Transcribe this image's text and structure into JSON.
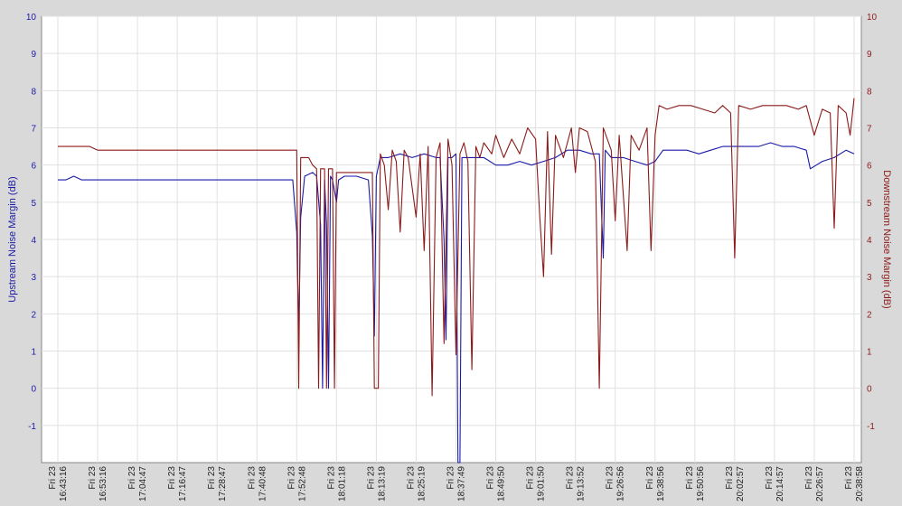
{
  "chart_data": {
    "type": "line",
    "left_axis": {
      "label": "Upstream Noise Margin (dB)",
      "color": "#1a1aa8",
      "range": [
        -2,
        10
      ],
      "ticks": [
        -1,
        0,
        1,
        2,
        3,
        4,
        5,
        6,
        7,
        8,
        9,
        10
      ]
    },
    "right_axis": {
      "label": "Downstream Noise Margin (dB)",
      "color": "#8b1a1a",
      "range": [
        -2,
        10
      ],
      "ticks": [
        -1,
        0,
        1,
        2,
        3,
        4,
        5,
        6,
        7,
        8,
        9,
        10
      ]
    },
    "x_tick_labels": [
      [
        "Fri 23",
        "16:43:16"
      ],
      [
        "Fri 23",
        "16:53:16"
      ],
      [
        "Fri 23",
        "17:04:47"
      ],
      [
        "Fri 23",
        "17:16:47"
      ],
      [
        "Fri 23",
        "17:28:47"
      ],
      [
        "Fri 23",
        "17:40:48"
      ],
      [
        "Fri 23",
        "17:52:48"
      ],
      [
        "Fri 23",
        "18:01:18"
      ],
      [
        "Fri 23",
        "18:13:19"
      ],
      [
        "Fri 23",
        "18:25:19"
      ],
      [
        "Fri 23",
        "18:37:49"
      ],
      [
        "Fri 23",
        "18:49:50"
      ],
      [
        "Fri 23",
        "19:01:50"
      ],
      [
        "Fri 23",
        "19:13:52"
      ],
      [
        "Fri 23",
        "19:26:56"
      ],
      [
        "Fri 23",
        "19:38:56"
      ],
      [
        "Fri 23",
        "19:50:56"
      ],
      [
        "Fri 23",
        "20:02:57"
      ],
      [
        "Fri 23",
        "20:14:57"
      ],
      [
        "Fri 23",
        "20:26:57"
      ],
      [
        "Fri 23",
        "20:38:58"
      ]
    ],
    "x_range": [
      0,
      20
    ],
    "grid": true,
    "series": [
      {
        "axis": "left",
        "color": "#1a1aa8",
        "points": [
          [
            0,
            5.6
          ],
          [
            0.2,
            5.6
          ],
          [
            0.4,
            5.7
          ],
          [
            0.6,
            5.6
          ],
          [
            1.0,
            5.6
          ],
          [
            1.4,
            5.6
          ],
          [
            1.8,
            5.6
          ],
          [
            2.2,
            5.6
          ],
          [
            2.6,
            5.6
          ],
          [
            3.0,
            5.6
          ],
          [
            3.4,
            5.6
          ],
          [
            3.8,
            5.6
          ],
          [
            4.2,
            5.6
          ],
          [
            4.6,
            5.6
          ],
          [
            5.0,
            5.6
          ],
          [
            5.5,
            5.6
          ],
          [
            5.9,
            5.6
          ],
          [
            6.0,
            4.2
          ],
          [
            6.05,
            1.5
          ],
          [
            6.1,
            4.6
          ],
          [
            6.2,
            5.7
          ],
          [
            6.4,
            5.8
          ],
          [
            6.5,
            5.7
          ],
          [
            6.6,
            4.4
          ],
          [
            6.65,
            0
          ],
          [
            6.7,
            5.6
          ],
          [
            6.75,
            4.4
          ],
          [
            6.8,
            0
          ],
          [
            6.85,
            5.7
          ],
          [
            6.9,
            5.6
          ],
          [
            7.0,
            5.0
          ],
          [
            7.05,
            5.6
          ],
          [
            7.2,
            5.7
          ],
          [
            7.5,
            5.7
          ],
          [
            7.8,
            5.6
          ],
          [
            7.9,
            4.1
          ],
          [
            7.95,
            1.4
          ],
          [
            8.0,
            5.7
          ],
          [
            8.1,
            6.2
          ],
          [
            8.3,
            6.2
          ],
          [
            8.6,
            6.3
          ],
          [
            8.9,
            6.2
          ],
          [
            9.2,
            6.3
          ],
          [
            9.5,
            6.2
          ],
          [
            9.6,
            6.2
          ],
          [
            9.7,
            4.0
          ],
          [
            9.75,
            1.3
          ],
          [
            9.8,
            6.2
          ],
          [
            9.9,
            6.2
          ],
          [
            10.0,
            6.3
          ],
          [
            10.05,
            -2
          ],
          [
            10.1,
            -2
          ],
          [
            10.15,
            6.2
          ],
          [
            10.4,
            6.2
          ],
          [
            10.7,
            6.2
          ],
          [
            11.0,
            6.0
          ],
          [
            11.3,
            6.0
          ],
          [
            11.6,
            6.1
          ],
          [
            11.9,
            6.0
          ],
          [
            12.2,
            6.1
          ],
          [
            12.5,
            6.2
          ],
          [
            12.8,
            6.4
          ],
          [
            13.1,
            6.4
          ],
          [
            13.4,
            6.3
          ],
          [
            13.6,
            6.3
          ],
          [
            13.7,
            3.5
          ],
          [
            13.75,
            6.4
          ],
          [
            13.9,
            6.2
          ],
          [
            14.2,
            6.2
          ],
          [
            14.5,
            6.1
          ],
          [
            14.8,
            6.0
          ],
          [
            15.0,
            6.1
          ],
          [
            15.2,
            6.4
          ],
          [
            15.5,
            6.4
          ],
          [
            15.8,
            6.4
          ],
          [
            16.1,
            6.3
          ],
          [
            16.4,
            6.4
          ],
          [
            16.7,
            6.5
          ],
          [
            17.0,
            6.5
          ],
          [
            17.3,
            6.5
          ],
          [
            17.6,
            6.5
          ],
          [
            17.9,
            6.6
          ],
          [
            18.2,
            6.5
          ],
          [
            18.5,
            6.5
          ],
          [
            18.8,
            6.4
          ],
          [
            18.9,
            5.9
          ],
          [
            19.2,
            6.1
          ],
          [
            19.5,
            6.2
          ],
          [
            19.8,
            6.4
          ],
          [
            20.0,
            6.3
          ]
        ]
      },
      {
        "axis": "right",
        "color": "#8b1a1a",
        "points": [
          [
            0,
            6.5
          ],
          [
            0.4,
            6.5
          ],
          [
            0.8,
            6.5
          ],
          [
            1.0,
            6.4
          ],
          [
            1.2,
            6.4
          ],
          [
            1.6,
            6.4
          ],
          [
            2.0,
            6.4
          ],
          [
            2.4,
            6.4
          ],
          [
            2.8,
            6.4
          ],
          [
            3.2,
            6.4
          ],
          [
            3.6,
            6.4
          ],
          [
            4.0,
            6.4
          ],
          [
            4.4,
            6.4
          ],
          [
            4.8,
            6.4
          ],
          [
            5.2,
            6.4
          ],
          [
            5.6,
            6.4
          ],
          [
            6.0,
            6.4
          ],
          [
            6.05,
            0
          ],
          [
            6.1,
            6.2
          ],
          [
            6.3,
            6.2
          ],
          [
            6.4,
            6.0
          ],
          [
            6.5,
            5.9
          ],
          [
            6.55,
            0
          ],
          [
            6.6,
            5.9
          ],
          [
            6.7,
            5.9
          ],
          [
            6.75,
            0
          ],
          [
            6.8,
            5.9
          ],
          [
            6.9,
            5.9
          ],
          [
            6.95,
            0
          ],
          [
            7.0,
            5.8
          ],
          [
            7.3,
            5.8
          ],
          [
            7.6,
            5.8
          ],
          [
            7.9,
            5.8
          ],
          [
            7.95,
            0
          ],
          [
            8.05,
            0
          ],
          [
            8.1,
            6.3
          ],
          [
            8.2,
            6.0
          ],
          [
            8.3,
            4.8
          ],
          [
            8.4,
            6.4
          ],
          [
            8.5,
            6.1
          ],
          [
            8.6,
            4.2
          ],
          [
            8.7,
            6.4
          ],
          [
            8.8,
            6.2
          ],
          [
            9.0,
            4.6
          ],
          [
            9.1,
            6.3
          ],
          [
            9.2,
            3.7
          ],
          [
            9.3,
            6.5
          ],
          [
            9.4,
            -0.2
          ],
          [
            9.5,
            6.2
          ],
          [
            9.6,
            6.6
          ],
          [
            9.7,
            1.2
          ],
          [
            9.8,
            6.7
          ],
          [
            9.9,
            6.0
          ],
          [
            10.0,
            0.9
          ],
          [
            10.1,
            6.3
          ],
          [
            10.2,
            6.6
          ],
          [
            10.3,
            6.1
          ],
          [
            10.4,
            0.5
          ],
          [
            10.5,
            6.5
          ],
          [
            10.6,
            6.2
          ],
          [
            10.7,
            6.6
          ],
          [
            10.9,
            6.3
          ],
          [
            11.0,
            6.8
          ],
          [
            11.2,
            6.2
          ],
          [
            11.4,
            6.7
          ],
          [
            11.6,
            6.3
          ],
          [
            11.8,
            7.0
          ],
          [
            12.0,
            6.7
          ],
          [
            12.1,
            4.7
          ],
          [
            12.2,
            3.0
          ],
          [
            12.3,
            6.9
          ],
          [
            12.4,
            3.6
          ],
          [
            12.5,
            6.8
          ],
          [
            12.7,
            6.2
          ],
          [
            12.9,
            7.0
          ],
          [
            13.0,
            5.8
          ],
          [
            13.1,
            7.0
          ],
          [
            13.3,
            6.9
          ],
          [
            13.5,
            6.1
          ],
          [
            13.6,
            0
          ],
          [
            13.7,
            7.0
          ],
          [
            13.9,
            6.4
          ],
          [
            14.0,
            4.5
          ],
          [
            14.1,
            6.8
          ],
          [
            14.3,
            3.7
          ],
          [
            14.4,
            6.8
          ],
          [
            14.6,
            6.4
          ],
          [
            14.8,
            7.0
          ],
          [
            14.9,
            3.7
          ],
          [
            15.0,
            6.8
          ],
          [
            15.1,
            7.6
          ],
          [
            15.3,
            7.5
          ],
          [
            15.6,
            7.6
          ],
          [
            15.9,
            7.6
          ],
          [
            16.2,
            7.5
          ],
          [
            16.5,
            7.4
          ],
          [
            16.7,
            7.6
          ],
          [
            16.9,
            7.4
          ],
          [
            17.0,
            3.5
          ],
          [
            17.1,
            7.6
          ],
          [
            17.4,
            7.5
          ],
          [
            17.7,
            7.6
          ],
          [
            18.0,
            7.6
          ],
          [
            18.3,
            7.6
          ],
          [
            18.6,
            7.5
          ],
          [
            18.8,
            7.6
          ],
          [
            19.0,
            6.8
          ],
          [
            19.2,
            7.5
          ],
          [
            19.4,
            7.4
          ],
          [
            19.5,
            4.3
          ],
          [
            19.6,
            7.6
          ],
          [
            19.8,
            7.4
          ],
          [
            19.9,
            6.8
          ],
          [
            20.0,
            7.8
          ]
        ]
      }
    ]
  }
}
